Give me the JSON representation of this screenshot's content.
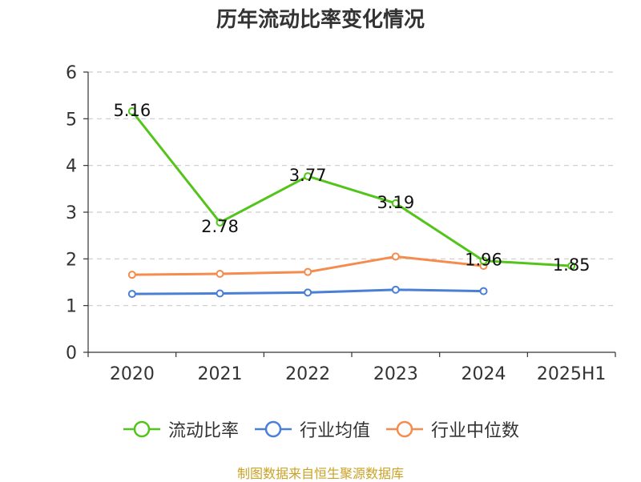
{
  "source": "制图数据来自恒生聚源数据库",
  "chart_data": {
    "type": "line",
    "title": "历年流动比率变化情况",
    "xlabel": "",
    "ylabel": "",
    "categories": [
      "2020",
      "2021",
      "2022",
      "2023",
      "2024",
      "2025H1"
    ],
    "ylim": [
      0,
      6
    ],
    "yticks": [
      0,
      1,
      2,
      3,
      4,
      5,
      6
    ],
    "grid": "horizontal-dashed",
    "legend_position": "bottom",
    "series": [
      {
        "name": "流动比率",
        "color": "#52c41a",
        "values": [
          5.16,
          2.78,
          3.77,
          3.19,
          1.96,
          1.85
        ],
        "labels": [
          "5.16",
          "2.78",
          "3.77",
          "3.19",
          "1.96",
          "1.85"
        ]
      },
      {
        "name": "行业均值",
        "color": "#4a7fd6",
        "values": [
          1.25,
          1.26,
          1.28,
          1.34,
          1.31,
          null
        ]
      },
      {
        "name": "行业中位数",
        "color": "#f58b4c",
        "values": [
          1.66,
          1.68,
          1.72,
          2.05,
          1.85,
          null
        ]
      }
    ]
  }
}
